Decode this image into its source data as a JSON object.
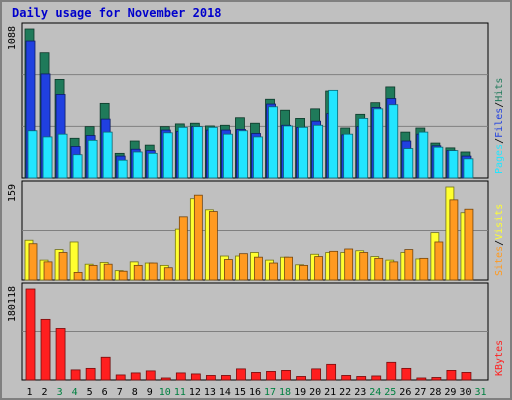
{
  "title": "Daily usage for November 2018",
  "colors": {
    "hits": "#1f7a5a",
    "files": "#2040e0",
    "pages": "#22e5ff",
    "visits": "#ffff30",
    "sites": "#ff9a20",
    "kbytes": "#ff1f1f",
    "background": "#c0c0c0",
    "weekend": "#008040"
  },
  "chart_data": [
    {
      "type": "bar",
      "title": "Daily usage for November 2018",
      "categories": [
        "1",
        "2",
        "3",
        "4",
        "5",
        "6",
        "7",
        "8",
        "9",
        "10",
        "11",
        "12",
        "13",
        "14",
        "15",
        "16",
        "17",
        "18",
        "19",
        "20",
        "21",
        "22",
        "23",
        "24",
        "25",
        "26",
        "27",
        "28",
        "29",
        "30",
        "31"
      ],
      "weekend_categories": [
        "3",
        "4",
        "10",
        "11",
        "17",
        "18",
        "24",
        "25",
        "31"
      ],
      "ylabel_top": "1088",
      "ylim": [
        0,
        1088
      ],
      "legend": [
        "Hits",
        "Files",
        "Pages"
      ],
      "series": [
        {
          "name": "Hits",
          "values": [
            1088,
            915,
            720,
            290,
            375,
            545,
            180,
            270,
            240,
            375,
            395,
            400,
            380,
            385,
            440,
            400,
            575,
            495,
            435,
            505,
            635,
            365,
            465,
            550,
            665,
            335,
            365,
            255,
            220,
            190,
            null
          ]
        },
        {
          "name": "Files",
          "values": [
            1000,
            760,
            610,
            230,
            310,
            430,
            160,
            210,
            200,
            350,
            340,
            375,
            350,
            350,
            355,
            325,
            540,
            385,
            370,
            415,
            470,
            315,
            375,
            515,
            580,
            270,
            320,
            235,
            200,
            160,
            null
          ]
        },
        {
          "name": "Pages",
          "values": [
            345,
            300,
            320,
            170,
            275,
            335,
            130,
            190,
            180,
            330,
            370,
            375,
            370,
            320,
            345,
            300,
            520,
            380,
            370,
            385,
            640,
            320,
            435,
            505,
            535,
            215,
            335,
            225,
            200,
            140,
            null
          ]
        }
      ]
    },
    {
      "type": "bar",
      "categories": [
        "1",
        "2",
        "3",
        "4",
        "5",
        "6",
        "7",
        "8",
        "9",
        "10",
        "11",
        "12",
        "13",
        "14",
        "15",
        "16",
        "17",
        "18",
        "19",
        "20",
        "21",
        "22",
        "23",
        "24",
        "25",
        "26",
        "27",
        "28",
        "29",
        "30",
        "31"
      ],
      "ylabel_top": "159",
      "ylim": [
        0,
        159
      ],
      "legend": [
        "Sites",
        "Visits"
      ],
      "series": [
        {
          "name": "Visits",
          "values": [
            68,
            34,
            52,
            65,
            27,
            30,
            16,
            31,
            29,
            25,
            87,
            139,
            120,
            41,
            41,
            47,
            34,
            39,
            26,
            44,
            47,
            47,
            50,
            40,
            34,
            47,
            36,
            81,
            159,
            115,
            null
          ]
        },
        {
          "name": "Sites",
          "values": [
            62,
            31,
            47,
            13,
            25,
            27,
            15,
            25,
            29,
            21,
            108,
            145,
            117,
            35,
            45,
            39,
            29,
            39,
            25,
            40,
            49,
            53,
            47,
            37,
            31,
            52,
            37,
            65,
            137,
            121,
            null
          ]
        }
      ]
    },
    {
      "type": "bar",
      "categories": [
        "1",
        "2",
        "3",
        "4",
        "5",
        "6",
        "7",
        "8",
        "9",
        "10",
        "11",
        "12",
        "13",
        "14",
        "15",
        "16",
        "17",
        "18",
        "19",
        "20",
        "21",
        "22",
        "23",
        "24",
        "25",
        "26",
        "27",
        "28",
        "29",
        "30",
        "31"
      ],
      "ylabel_top": "180118",
      "ylim": [
        0,
        180118
      ],
      "legend": [
        "KBytes"
      ],
      "series": [
        {
          "name": "KBytes",
          "values": [
            180118,
            120000,
            102000,
            20000,
            23000,
            45000,
            10000,
            14000,
            18000,
            4000,
            14000,
            12000,
            9000,
            9000,
            22000,
            15000,
            17000,
            19000,
            7000,
            22000,
            31000,
            9000,
            7000,
            8000,
            35000,
            23000,
            4000,
            5000,
            19000,
            15000,
            null
          ]
        }
      ]
    }
  ]
}
